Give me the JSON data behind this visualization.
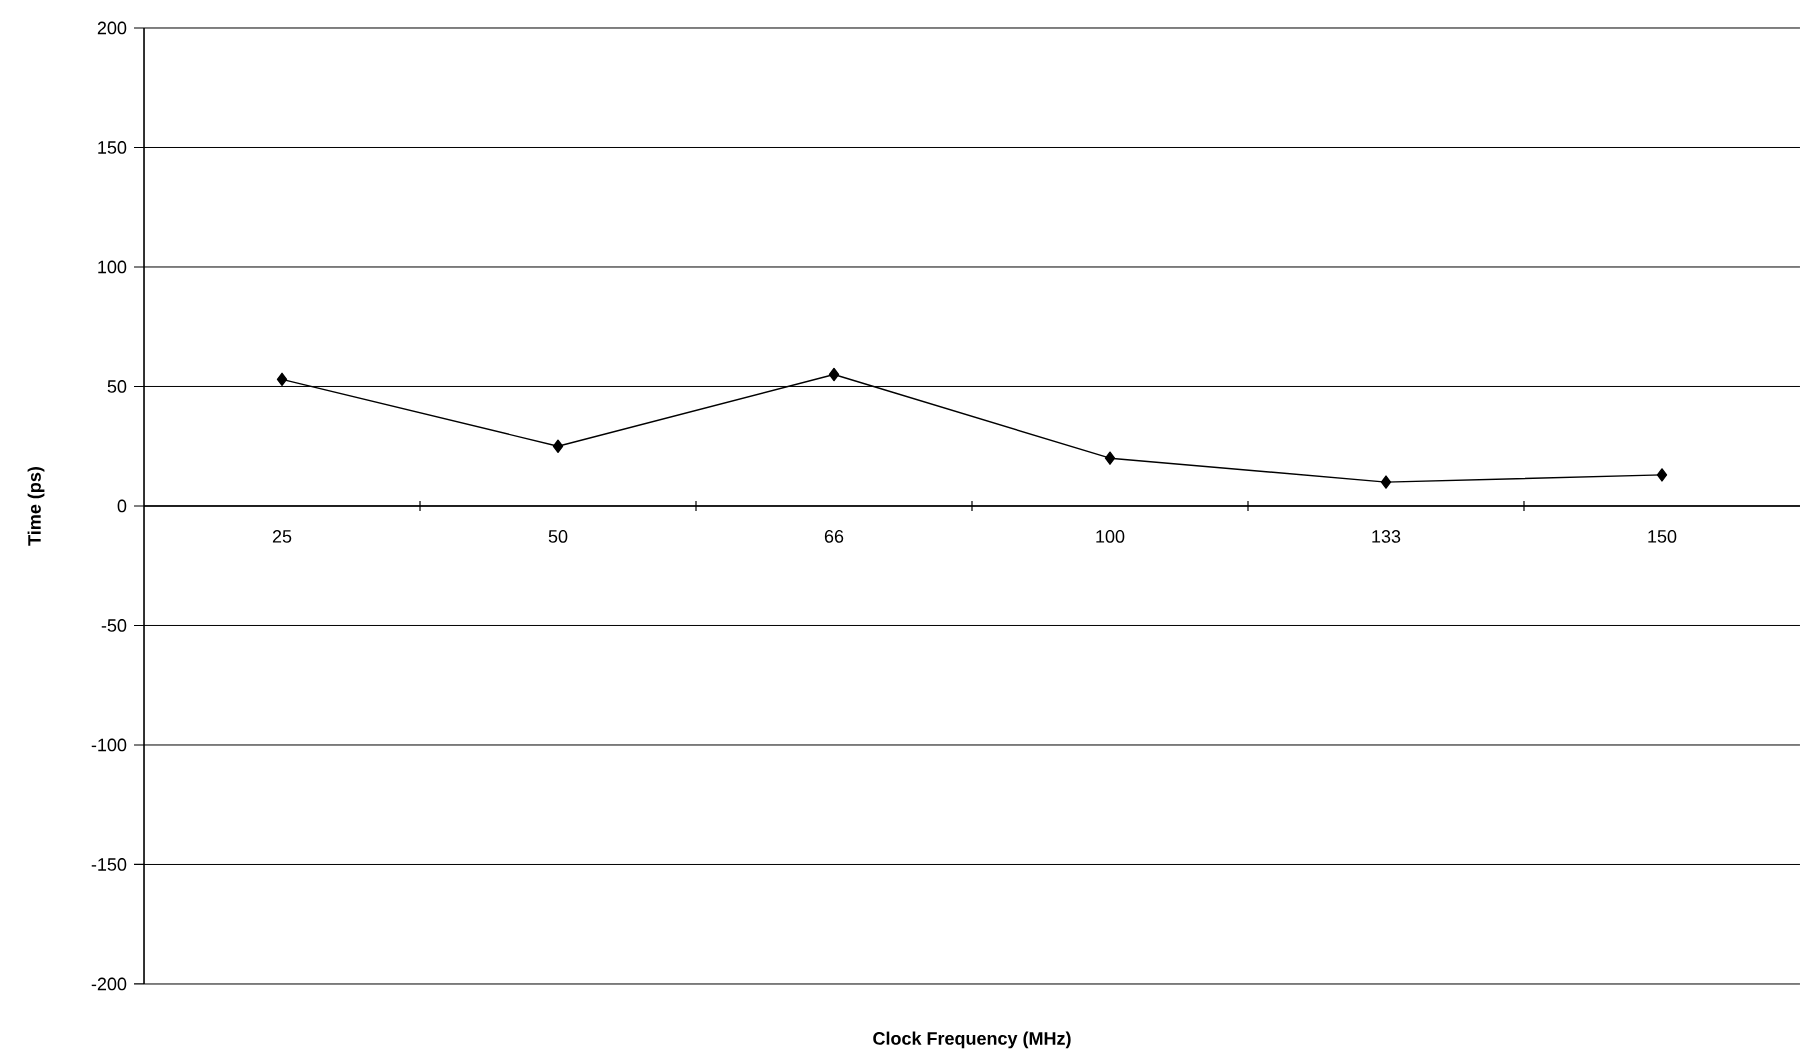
{
  "chart_data": {
    "type": "line",
    "xlabel": "Clock Frequency (MHz)",
    "ylabel": "Time (ps)",
    "categories": [
      "25",
      "50",
      "66",
      "100",
      "133",
      "150"
    ],
    "series": [
      {
        "color": "#000000",
        "values": [
          53,
          25,
          55,
          20,
          10,
          13
        ]
      }
    ],
    "ylim": [
      -200,
      200
    ],
    "yticks": [
      -200,
      -150,
      -100,
      -50,
      0,
      50,
      100,
      150,
      200
    ],
    "grid": "y",
    "marker": "diamond",
    "line_style": "solid"
  }
}
